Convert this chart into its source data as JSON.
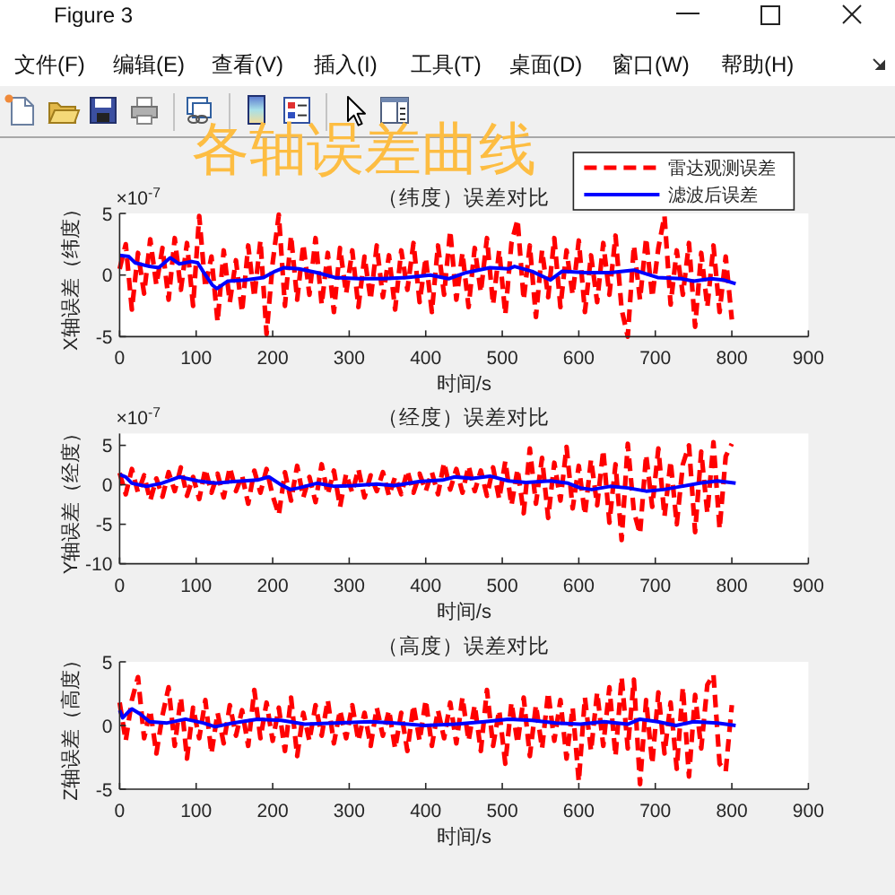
{
  "chart_data": [
    {
      "type": "other",
      "title": "Figure 3",
      "subtitle": "各轴误差曲线",
      "annotations": [
        "文件(F)",
        "编辑(E)",
        "查看(V)",
        "插入(I)",
        "工具(T)",
        "桌面(D)",
        "窗口(W)",
        "帮助(H)"
      ]
    },
    {
      "type": "line",
      "title": "（纬度）误差对比",
      "xlabel": "时间/s",
      "ylabel": "X轴误差（纬度）",
      "annotations": [
        "×10$^{-7}$"
      ],
      "xlim": [
        0,
        900
      ],
      "xticks": [
        0,
        100,
        200,
        300,
        400,
        500,
        600,
        700,
        800,
        900
      ],
      "ylim": [
        -5,
        5
      ],
      "yticks": [
        -5,
        0,
        5
      ],
      "legend": "top right",
      "series": [
        {
          "name": "雷达观测误差",
          "color": "#ff0000",
          "line_style": "dashed",
          "x": [
            0,
            8,
            16,
            24,
            32,
            40,
            48,
            56,
            64,
            72,
            80,
            88,
            96,
            104,
            112,
            120,
            128,
            136,
            144,
            152,
            160,
            168,
            176,
            184,
            192,
            200,
            208,
            216,
            224,
            232,
            240,
            248,
            256,
            264,
            272,
            280,
            288,
            296,
            304,
            312,
            320,
            328,
            336,
            344,
            352,
            360,
            368,
            376,
            384,
            392,
            400,
            408,
            416,
            424,
            432,
            440,
            448,
            456,
            464,
            472,
            480,
            488,
            496,
            504,
            512,
            520,
            528,
            536,
            544,
            552,
            560,
            568,
            576,
            584,
            592,
            600,
            608,
            616,
            624,
            632,
            640,
            648,
            656,
            664,
            672,
            680,
            688,
            696,
            704,
            712,
            720,
            728,
            736,
            744,
            752,
            760,
            768,
            776,
            784,
            792,
            800
          ],
          "values": [
            0.5,
            2.5,
            -2.8,
            1.8,
            -1.5,
            2.9,
            -0.8,
            2.2,
            -2.0,
            3.0,
            -1.2,
            2.6,
            -2.5,
            4.8,
            -1.0,
            1.5,
            -3.8,
            2.0,
            -2.2,
            1.2,
            -3.0,
            2.4,
            -1.8,
            2.8,
            -4.8,
            1.0,
            4.9,
            -2.5,
            3.2,
            -2.0,
            2.5,
            -1.6,
            3.0,
            -2.4,
            1.8,
            -3.0,
            2.2,
            -1.5,
            2.0,
            -2.6,
            1.5,
            -2.0,
            2.4,
            -1.8,
            1.6,
            -2.8,
            2.0,
            -1.2,
            2.6,
            -2.2,
            1.4,
            -3.0,
            2.4,
            -1.6,
            3.6,
            -2.0,
            1.8,
            -2.6,
            2.2,
            -1.4,
            3.0,
            -2.4,
            2.0,
            -3.2,
            2.6,
            4.5,
            -2.0,
            2.4,
            -3.4,
            2.0,
            -1.8,
            3.0,
            -2.6,
            2.0,
            -1.6,
            2.8,
            -3.0,
            1.6,
            -2.2,
            2.6,
            -1.6,
            3.2,
            -2.8,
            -5.0,
            2.4,
            -2.0,
            3.0,
            -1.8,
            2.2,
            4.8,
            -2.4,
            2.0,
            -1.6,
            2.6,
            -4.2,
            1.8,
            -2.6,
            2.4,
            -3.0,
            1.5,
            -3.6
          ]
        },
        {
          "name": "滤波后误差",
          "color": "#0000ff",
          "line_style": "solid",
          "x": [
            0,
            12,
            20,
            39,
            51,
            66,
            78,
            94,
            102,
            109,
            121,
            127,
            141,
            164,
            188,
            203,
            215,
            234,
            258,
            281,
            313,
            344,
            375,
            406,
            430,
            453,
            484,
            508,
            516,
            539,
            563,
            578,
            609,
            641,
            672,
            703,
            734,
            750,
            773,
            789,
            805
          ],
          "values": [
            1.6,
            1.5,
            1.0,
            0.7,
            0.6,
            1.4,
            0.9,
            1.1,
            1.0,
            0.3,
            -0.8,
            -1.1,
            -0.5,
            -0.4,
            -0.2,
            0.3,
            0.6,
            0.5,
            0.2,
            -0.2,
            -0.3,
            -0.3,
            -0.2,
            0,
            -0.3,
            0.2,
            0.6,
            0.5,
            0.7,
            0.3,
            -0.4,
            0.3,
            0.2,
            0.2,
            0.4,
            -0.2,
            -0.3,
            -0.5,
            -0.3,
            -0.4,
            -0.7
          ]
        }
      ]
    },
    {
      "type": "line",
      "title": "（经度）误差对比",
      "xlabel": "时间/s",
      "ylabel": "Y轴误差（经度）",
      "annotations": [
        "×10$^{-7}$"
      ],
      "xlim": [
        0,
        900
      ],
      "xticks": [
        0,
        100,
        200,
        300,
        400,
        500,
        600,
        700,
        800,
        900
      ],
      "ylim": [
        -10,
        6.5
      ],
      "yticks": [
        -10,
        -5,
        0,
        5
      ],
      "series": [
        {
          "color": "#ff0000",
          "line_style": "dashed",
          "x": [
            0,
            8,
            16,
            24,
            32,
            40,
            48,
            56,
            64,
            72,
            80,
            88,
            96,
            104,
            112,
            120,
            128,
            136,
            144,
            152,
            160,
            168,
            176,
            184,
            192,
            200,
            208,
            216,
            224,
            232,
            240,
            248,
            256,
            264,
            272,
            280,
            288,
            296,
            304,
            312,
            320,
            328,
            336,
            344,
            352,
            360,
            368,
            376,
            384,
            392,
            400,
            408,
            416,
            424,
            432,
            440,
            448,
            456,
            464,
            472,
            480,
            488,
            496,
            504,
            512,
            520,
            528,
            536,
            544,
            552,
            560,
            568,
            576,
            584,
            592,
            600,
            608,
            616,
            624,
            632,
            640,
            648,
            656,
            664,
            672,
            680,
            688,
            696,
            704,
            712,
            720,
            728,
            736,
            744,
            752,
            760,
            768,
            776,
            784,
            792,
            800
          ],
          "values": [
            1.5,
            -1.2,
            2.0,
            -1.0,
            1.2,
            -2.0,
            0.8,
            -1.5,
            1.6,
            -0.8,
            2.2,
            -1.4,
            1.0,
            -1.8,
            2.0,
            -1.0,
            1.4,
            -1.6,
            2.2,
            -0.8,
            1.2,
            -2.4,
            1.8,
            -1.0,
            2.0,
            -1.4,
            -3.8,
            1.6,
            -2.0,
            2.4,
            -1.6,
            1.0,
            -2.2,
            2.6,
            -1.2,
            1.8,
            -2.8,
            1.4,
            -1.0,
            2.0,
            -1.6,
            1.2,
            -0.8,
            1.6,
            -1.4,
            1.0,
            -1.2,
            1.8,
            -1.0,
            1.4,
            -0.8,
            1.6,
            -1.2,
            2.8,
            -0.6,
            2.0,
            -1.0,
            2.4,
            -0.8,
            1.8,
            -1.4,
            2.2,
            -1.8,
            3.0,
            -2.6,
            2.0,
            -3.6,
            4.6,
            -2.4,
            3.4,
            -4.2,
            2.8,
            -2.0,
            4.8,
            -3.0,
            2.4,
            -3.8,
            3.2,
            -2.6,
            4.4,
            -4.8,
            2.6,
            -7.0,
            5.2,
            -3.4,
            -6.2,
            3.8,
            -2.8,
            4.6,
            -4.0,
            3.0,
            -5.0,
            2.6,
            5.0,
            -6.0,
            4.2,
            -3.6,
            5.4,
            -5.6,
            3.6,
            5.2
          ]
        },
        {
          "color": "#0000ff",
          "line_style": "solid",
          "x": [
            0,
            8,
            16,
            35,
            55,
            78,
            102,
            125,
            148,
            180,
            195,
            211,
            223,
            234,
            258,
            281,
            305,
            336,
            359,
            391,
            422,
            438,
            461,
            484,
            508,
            531,
            563,
            586,
            602,
            617,
            641,
            664,
            688,
            711,
            734,
            758,
            781,
            805
          ],
          "values": [
            1.3,
            1.0,
            0.2,
            -0.2,
            0.2,
            1.0,
            0.5,
            0.2,
            0.4,
            0.6,
            1.0,
            0,
            -0.6,
            -0.4,
            0.2,
            -0.2,
            -0.1,
            0.1,
            -0.1,
            0.4,
            0.6,
            1.0,
            0.8,
            1.1,
            0.5,
            0.3,
            0.5,
            0.2,
            -0.4,
            -0.6,
            -0.2,
            -0.4,
            -0.8,
            -0.6,
            -0.2,
            0.2,
            0.5,
            0.2
          ]
        }
      ]
    },
    {
      "type": "line",
      "title": "（高度）误差对比",
      "xlabel": "时间/s",
      "ylabel": "Z轴误差（高度）",
      "xlim": [
        0,
        900
      ],
      "xticks": [
        0,
        100,
        200,
        300,
        400,
        500,
        600,
        700,
        800,
        900
      ],
      "ylim": [
        -5,
        5
      ],
      "yticks": [
        -5,
        0,
        5
      ],
      "series": [
        {
          "color": "#ff0000",
          "line_style": "dashed",
          "x": [
            0,
            8,
            16,
            24,
            32,
            40,
            48,
            56,
            64,
            72,
            80,
            88,
            96,
            104,
            112,
            120,
            128,
            136,
            144,
            152,
            160,
            168,
            176,
            184,
            192,
            200,
            208,
            216,
            224,
            232,
            240,
            248,
            256,
            264,
            272,
            280,
            288,
            296,
            304,
            312,
            320,
            328,
            336,
            344,
            352,
            360,
            368,
            376,
            384,
            392,
            400,
            408,
            416,
            424,
            432,
            440,
            448,
            456,
            464,
            472,
            480,
            488,
            496,
            504,
            512,
            520,
            528,
            536,
            544,
            552,
            560,
            568,
            576,
            584,
            592,
            600,
            608,
            616,
            624,
            632,
            640,
            648,
            656,
            664,
            672,
            680,
            688,
            696,
            704,
            712,
            720,
            728,
            736,
            744,
            752,
            760,
            768,
            776,
            784,
            792,
            800
          ],
          "values": [
            1.8,
            -1.2,
            2.0,
            3.8,
            -1.0,
            1.2,
            -2.2,
            0.8,
            3.0,
            -1.6,
            2.2,
            -2.6,
            1.4,
            -1.0,
            2.0,
            -2.2,
            1.0,
            -1.4,
            1.6,
            -0.8,
            1.2,
            -1.6,
            2.8,
            -1.0,
            1.8,
            -1.2,
            1.4,
            -2.0,
            2.2,
            -2.4,
            1.0,
            -1.2,
            1.6,
            -0.8,
            2.0,
            -1.4,
            1.2,
            -1.0,
            1.6,
            -1.2,
            1.0,
            -1.6,
            1.4,
            -0.8,
            1.2,
            -1.8,
            1.0,
            -2.0,
            1.6,
            -1.2,
            2.0,
            -1.6,
            1.2,
            -1.0,
            1.8,
            -1.4,
            2.2,
            -1.2,
            1.6,
            -2.0,
            2.8,
            -1.6,
            1.2,
            -3.0,
            1.8,
            -1.4,
            2.2,
            -2.4,
            1.6,
            -1.8,
            2.6,
            -1.2,
            2.0,
            -2.6,
            1.4,
            -4.4,
            2.2,
            -2.0,
            2.6,
            -1.6,
            3.0,
            -2.4,
            3.8,
            -1.8,
            3.6,
            -4.6,
            2.0,
            -3.0,
            2.6,
            -2.2,
            1.8,
            -3.4,
            3.0,
            -4.0,
            2.4,
            -1.8,
            3.2,
            4.0,
            -3.0,
            -3.6,
            1.6
          ]
        },
        {
          "color": "#0000ff",
          "line_style": "solid",
          "x": [
            0,
            4,
            12,
            16,
            27,
            39,
            62,
            86,
            109,
            125,
            148,
            180,
            211,
            242,
            281,
            328,
            359,
            398,
            438,
            477,
            508,
            539,
            570,
            602,
            633,
            664,
            680,
            703,
            727,
            750,
            781,
            805
          ],
          "values": [
            1.2,
            0.6,
            1.1,
            1.3,
            0.9,
            0.3,
            0.2,
            0.5,
            0.2,
            -0.1,
            0.2,
            0.5,
            0.4,
            0.1,
            0.2,
            0.3,
            0.2,
            0,
            0.1,
            0.3,
            0.5,
            0.4,
            0.2,
            0.1,
            0.3,
            0.1,
            0.5,
            0.3,
            0,
            0.3,
            0.2,
            0
          ]
        }
      ]
    }
  ]
}
